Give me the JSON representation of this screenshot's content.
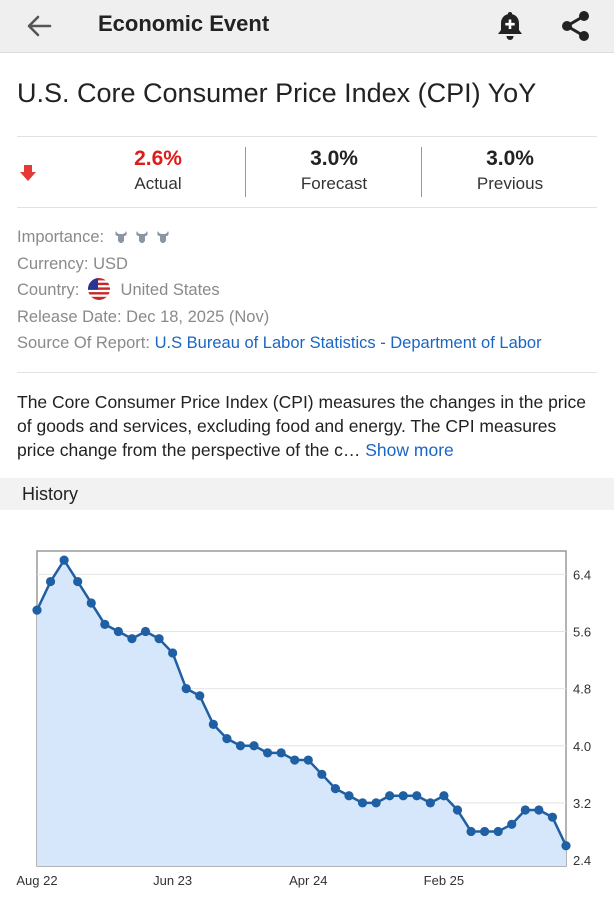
{
  "app_bar": {
    "title": "Economic Event",
    "icons": [
      "back-arrow-icon",
      "add-alert-bell-icon",
      "share-icon"
    ]
  },
  "event": {
    "title": "U.S. Core Consumer Price Index (CPI) YoY",
    "direction_icon": "down-arrow-icon",
    "actual": {
      "value": "2.6%",
      "label": "Actual",
      "color": "#e01b1b"
    },
    "forecast": {
      "value": "3.0%",
      "label": "Forecast"
    },
    "previous": {
      "value": "3.0%",
      "label": "Previous"
    }
  },
  "details": {
    "importance_label": "Importance:",
    "importance_level": 3,
    "currency_label": "Currency:",
    "currency_value": "USD",
    "country_label": "Country:",
    "country_value": "United States",
    "release_label": "Release Date:",
    "release_value": "Dec 18, 2025 (Nov)",
    "source_label": "Source Of Report:",
    "source_value": "U.S Bureau of Labor Statistics - Department of Labor"
  },
  "description": {
    "text": "The Core Consumer Price Index (CPI) measures the changes in the price of goods and services, excluding food and energy. The CPI measures price change from the perspective of the c…",
    "more_label": "Show more"
  },
  "history": {
    "title": "History"
  },
  "chart_data": {
    "type": "area",
    "x_tick_labels": [
      "Aug 22",
      "Jun 23",
      "Apr 24",
      "Feb 25"
    ],
    "x_tick_index": [
      0,
      10,
      20,
      30
    ],
    "y_tick_labels": [
      "6.4",
      "5.6",
      "4.8",
      "4.0",
      "3.2",
      "2.4"
    ],
    "y_ticks": [
      6.4,
      5.6,
      4.8,
      4.0,
      3.2,
      2.4
    ],
    "ylim": [
      2.4,
      6.7
    ],
    "grid": true,
    "line_color": "#1f5fa3",
    "fill_color": "#d6e6fb",
    "values": [
      5.9,
      6.3,
      6.6,
      6.3,
      6.0,
      5.7,
      5.6,
      5.5,
      5.6,
      5.5,
      5.3,
      4.8,
      4.7,
      4.3,
      4.1,
      4.0,
      4.0,
      3.9,
      3.9,
      3.8,
      3.8,
      3.6,
      3.4,
      3.3,
      3.2,
      3.2,
      3.3,
      3.3,
      3.3,
      3.2,
      3.3,
      3.1,
      2.8,
      2.8,
      2.8,
      2.9,
      3.1,
      3.1,
      3.0,
      2.6
    ]
  }
}
